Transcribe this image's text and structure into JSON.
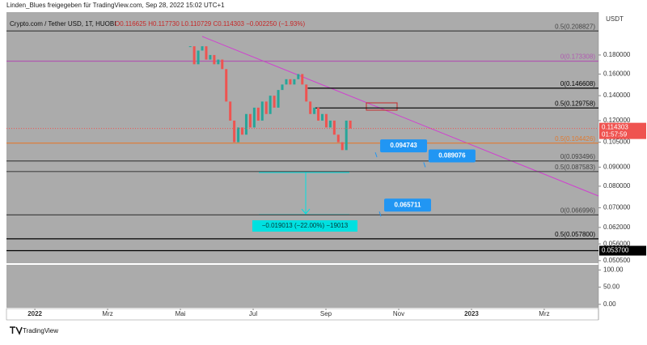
{
  "header": {
    "shared_by": "Linden_Blues freigegeben für TradingView.com, Sep 28, 2022 15:02 UTC+1",
    "symbol": "Crypto.com / Tether USD, 1T, HUOBI",
    "ohlc": "O0.116625 H0.117730 L0.110729 C0.114303 −0.002250 (−1.93%)"
  },
  "chart_data": {
    "type": "candlestick",
    "y_axis_label": "USDT",
    "log_scale": true,
    "x": [
      4.27,
      4.38,
      4.49,
      4.6,
      4.71,
      4.82,
      4.93,
      5.04,
      5.15,
      5.26,
      5.37,
      5.48,
      5.59,
      5.7,
      5.81,
      5.92,
      6.03,
      6.14,
      6.25,
      6.36,
      6.47,
      6.58,
      6.69,
      6.8,
      6.91,
      7.02,
      7.13,
      7.24,
      7.35,
      7.46,
      7.57,
      7.68,
      7.79,
      7.9,
      8.01,
      8.12,
      8.23,
      8.34,
      8.45,
      8.56,
      8.67
    ],
    "close": [
      0.19,
      0.17,
      0.185,
      0.19,
      0.175,
      0.18,
      0.17,
      0.175,
      0.165,
      0.135,
      0.12,
      0.105,
      0.115,
      0.11,
      0.125,
      0.115,
      0.13,
      0.12,
      0.135,
      0.125,
      0.14,
      0.13,
      0.145,
      0.15,
      0.155,
      0.15,
      0.155,
      0.16,
      0.15,
      0.135,
      0.125,
      0.13,
      0.12,
      0.125,
      0.115,
      0.12,
      0.11,
      0.105,
      0.1,
      0.12,
      0.114303
    ],
    "xlim": [
      -0.78,
      15.49
    ],
    "xticks": [
      {
        "value": 0,
        "label": "2022"
      },
      {
        "value": 2,
        "label": "Mrz"
      },
      {
        "value": 4,
        "label": "Mai"
      },
      {
        "value": 6,
        "label": "Jul"
      },
      {
        "value": 8,
        "label": "Sep"
      },
      {
        "value": 10,
        "label": "Nov"
      },
      {
        "value": 12,
        "label": "2023"
      },
      {
        "value": 14,
        "label": "Mrz"
      }
    ],
    "ylim": [
      0.0497,
      0.2346
    ],
    "yticks": [
      {
        "value": 0.18,
        "label": "0.180000"
      },
      {
        "value": 0.16,
        "label": "0.160000"
      },
      {
        "value": 0.14,
        "label": "0.140000"
      },
      {
        "value": 0.12,
        "label": "0.120000"
      },
      {
        "value": 0.105,
        "label": "0.105000"
      },
      {
        "value": 0.09,
        "label": "0.090000"
      },
      {
        "value": 0.08,
        "label": "0.080000"
      },
      {
        "value": 0.07,
        "label": "0.070000"
      },
      {
        "value": 0.062,
        "label": "0.062000"
      },
      {
        "value": 0.056,
        "label": "0.056000"
      },
      {
        "value": 0.0505,
        "label": "0.050500"
      }
    ],
    "current_price": {
      "value": 0.114303,
      "label": "0.114303",
      "countdown": "01:57:59"
    },
    "levels": [
      {
        "value": 0.208827,
        "label": "0.5(0.208827)",
        "color": "#444444"
      },
      {
        "value": 0.173308,
        "label": "0(0.173308)",
        "color": "#b05ab0"
      },
      {
        "value": 0.146608,
        "label": "0(0.146608)",
        "color": "#000000",
        "x_start": 7.5
      },
      {
        "value": 0.129758,
        "label": "0.5(0.129758)",
        "color": "#000000",
        "x_start": 7.7
      },
      {
        "value": 0.104426,
        "label": "0.5(0.104426)",
        "color": "#e07a30"
      },
      {
        "value": 0.093496,
        "label": "0(0.093496)",
        "color": "#444444"
      },
      {
        "value": 0.087583,
        "label": "0.5(0.087583)",
        "color": "#444444"
      },
      {
        "value": 0.066996,
        "label": "0(0.066996)",
        "color": "#444444"
      },
      {
        "value": 0.0578,
        "label": "0.5(0.057800)",
        "color": "#000000"
      },
      {
        "value": 0.0537,
        "label": "0.053700",
        "color": "#000000",
        "tag": true
      }
    ],
    "callouts": [
      {
        "x": 9.49,
        "value": 0.094743,
        "label": "0.094743"
      },
      {
        "x": 10.82,
        "value": 0.089076,
        "label": "0.089076"
      },
      {
        "x": 9.6,
        "value": 0.065711,
        "label": "0.065711"
      }
    ],
    "measure": {
      "label": "−0.019013 (−22.00%) −19013"
    },
    "indicator": {
      "ylim": [
        -10,
        115
      ],
      "yticks": [
        {
          "value": 100,
          "label": "100.00"
        },
        {
          "value": 50,
          "label": "50.00"
        },
        {
          "value": 0,
          "label": "0.00"
        }
      ]
    },
    "colors": {
      "up": "#26a69a",
      "down": "#ef5350",
      "trend": "#d040d0",
      "callout": "#2196f3"
    }
  },
  "footer": "TradingView"
}
